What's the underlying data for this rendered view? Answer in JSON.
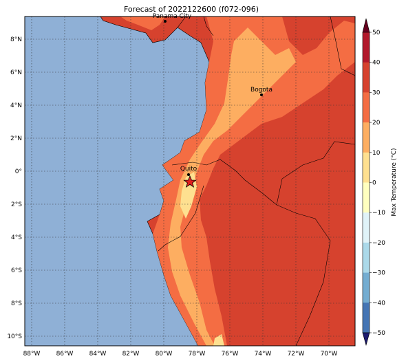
{
  "title": "Forecast of 2022122600 (f072-096)",
  "colorbar": {
    "label": "Max Temperature (°C)",
    "ticks": [
      "50",
      "40",
      "30",
      "20",
      "10",
      "0",
      "−10",
      "−20",
      "−30",
      "−40",
      "−50"
    ],
    "colors": [
      "#67001f",
      "#b2182b",
      "#d6422e",
      "#f46d43",
      "#fdae61",
      "#fee090",
      "#ffffbf",
      "#e0f3f8",
      "#abd9e9",
      "#74add1",
      "#4575b4",
      "#313695",
      "#1c1a6e"
    ]
  },
  "axes": {
    "lon_ticks": [
      "88°W",
      "86°W",
      "84°W",
      "82°W",
      "80°W",
      "78°W",
      "76°W",
      "74°W",
      "72°W",
      "70°W"
    ],
    "lat_ticks": [
      "8°N",
      "6°N",
      "4°N",
      "2°N",
      "0°",
      "2°S",
      "4°S",
      "6°S",
      "8°S",
      "10°S"
    ]
  },
  "cities": [
    {
      "name": "Panama City"
    },
    {
      "name": "Bogota"
    },
    {
      "name": "Quito"
    }
  ],
  "map_colors": {
    "ocean": "#8fb0d6",
    "temp_30_40": "#d6422e",
    "temp_20_30": "#f46d43",
    "temp_10_20": "#fdae61",
    "temp_0_10": "#fee090"
  }
}
